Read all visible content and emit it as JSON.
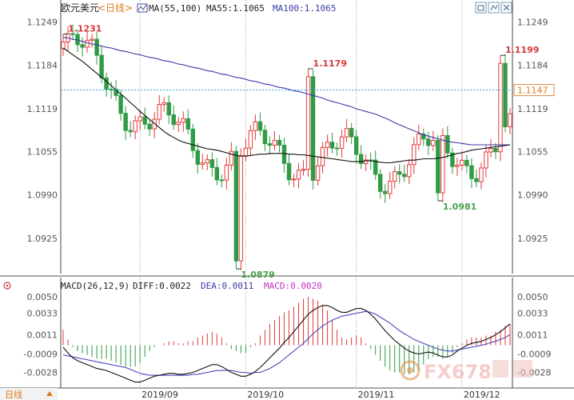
{
  "header": {
    "symbol": "欧元美元",
    "period_tag": "<日线>",
    "ma_label": "MA(55,100)",
    "ma55_label": "MA55:1.1065",
    "ma100_label": "MA100:1.1065"
  },
  "macd_header": {
    "label": "MACD(26,12,9)",
    "diff_label": "DIFF:0.0022",
    "dea_label": "DEA:0.0011",
    "macd_label": "MACD:0.0020"
  },
  "footer": {
    "period_button": "日线"
  },
  "watermark": "FX678",
  "colors": {
    "up": "#e23b3b",
    "down": "#2f9b45",
    "ma55": "#111111",
    "ma100": "#3a3aa8",
    "dea": "#4a4ac0",
    "price_line": "#2ba5e8",
    "grid": "#9a9a9a",
    "axis_text": "#555555"
  },
  "chart_data": [
    {
      "type": "candlestick",
      "title": "欧元美元 日线",
      "y_ticks": [
        1.1249,
        1.1184,
        1.1119,
        1.1055,
        1.099,
        1.0925
      ],
      "ylim": [
        1.0872,
        1.1258
      ],
      "x_labels": [
        "2019/09",
        "2019/10",
        "2019/11",
        "2019/12"
      ],
      "x_label_index": [
        16,
        38,
        61,
        83
      ],
      "current_price_label": "1.1147",
      "current_price": 1.1147,
      "annotations": [
        {
          "text": "1.1231",
          "index": 0,
          "value": 1.1231,
          "kind": "high"
        },
        {
          "text": "1.1179",
          "index": 51,
          "value": 1.1179,
          "kind": "high"
        },
        {
          "text": "1.0879",
          "index": 36,
          "value": 1.0879,
          "kind": "low"
        },
        {
          "text": "1.0981",
          "index": 78,
          "value": 1.0981,
          "kind": "low"
        },
        {
          "text": "1.1199",
          "index": 91,
          "value": 1.1199,
          "kind": "high"
        }
      ],
      "ma55": [
        1.121,
        1.1205,
        1.12,
        1.1195,
        1.119,
        1.1184,
        1.1178,
        1.1172,
        1.1166,
        1.116,
        1.1154,
        1.1147,
        1.1141,
        1.1135,
        1.1128,
        1.1122,
        1.1115,
        1.1109,
        1.1103,
        1.1097,
        1.1091,
        1.1085,
        1.108,
        1.1076,
        1.1072,
        1.1069,
        1.1067,
        1.1065,
        1.1063,
        1.1061,
        1.1059,
        1.1058,
        1.1057,
        1.1055,
        1.1053,
        1.1051,
        1.1049,
        1.1048,
        1.1048,
        1.1049,
        1.105,
        1.1051,
        1.1051,
        1.1052,
        1.1052,
        1.1052,
        1.1052,
        1.1051,
        1.1051,
        1.105,
        1.105,
        1.1049,
        1.1048,
        1.1047,
        1.1046,
        1.1045,
        1.1044,
        1.1043,
        1.1042,
        1.1041,
        1.104,
        1.104,
        1.104,
        1.1041,
        1.1041,
        1.104,
        1.1039,
        1.1038,
        1.1038,
        1.1039,
        1.104,
        1.1041,
        1.1042,
        1.1042,
        1.1043,
        1.1044,
        1.1044,
        1.1044,
        1.1045,
        1.1046,
        1.1048,
        1.105,
        1.1052,
        1.1053,
        1.1055,
        1.1057,
        1.1058,
        1.1059,
        1.106,
        1.1061,
        1.1062,
        1.1063,
        1.1064,
        1.1065
      ],
      "ma100": [
        1.1226,
        1.1225,
        1.1223,
        1.1222,
        1.122,
        1.1218,
        1.1216,
        1.1215,
        1.1213,
        1.1211,
        1.121,
        1.1208,
        1.1206,
        1.1205,
        1.1203,
        1.1201,
        1.12,
        1.1198,
        1.1196,
        1.1195,
        1.1193,
        1.1191,
        1.119,
        1.1188,
        1.1186,
        1.1185,
        1.1183,
        1.1181,
        1.118,
        1.1178,
        1.1176,
        1.1175,
        1.1173,
        1.1171,
        1.117,
        1.1168,
        1.1166,
        1.1165,
        1.1163,
        1.1161,
        1.116,
        1.1158,
        1.1156,
        1.1155,
        1.1153,
        1.1151,
        1.115,
        1.1148,
        1.1146,
        1.1145,
        1.1143,
        1.1141,
        1.1139,
        1.1137,
        1.1135,
        1.1132,
        1.113,
        1.1128,
        1.1126,
        1.1124,
        1.1122,
        1.1119,
        1.1117,
        1.1115,
        1.1113,
        1.1111,
        1.1108,
        1.1105,
        1.1102,
        1.1098,
        1.1095,
        1.1092,
        1.1089,
        1.1086,
        1.1083,
        1.108,
        1.1078,
        1.1076,
        1.1074,
        1.1072,
        1.107,
        1.1069,
        1.1068,
        1.1067,
        1.1066,
        1.1065,
        1.1065,
        1.1065,
        1.1065,
        1.1065,
        1.1065,
        1.1065,
        1.1065,
        1.1065
      ]
    },
    {
      "type": "bar",
      "title": "MACD(26,12,9)",
      "y_ticks": [
        0.005,
        0.0033,
        0.0011,
        -0.0009,
        -0.0028
      ],
      "y_tick_labels": [
        "0.0050",
        "0.0033",
        "0.0011",
        "-0.0009",
        "-0.0028"
      ],
      "ylim": [
        -0.004,
        0.0055
      ],
      "x_labels": [
        "2019/09",
        "2019/10",
        "2019/11",
        "2019/12"
      ],
      "diff": [
        -0.0002,
        -0.0008,
        -0.0013,
        -0.0016,
        -0.0018,
        -0.002,
        -0.0022,
        -0.0024,
        -0.0025,
        -0.0026,
        -0.0028,
        -0.003,
        -0.0032,
        -0.0034,
        -0.0036,
        -0.0038,
        -0.0038,
        -0.0036,
        -0.0034,
        -0.0032,
        -0.0031,
        -0.003,
        -0.0029,
        -0.0029,
        -0.003,
        -0.003,
        -0.0029,
        -0.0028,
        -0.0026,
        -0.0024,
        -0.0022,
        -0.002,
        -0.002,
        -0.0022,
        -0.0025,
        -0.0028,
        -0.003,
        -0.0032,
        -0.0032,
        -0.003,
        -0.0027,
        -0.0023,
        -0.0018,
        -0.0013,
        -0.0008,
        -0.0003,
        0.0003,
        0.0008,
        0.0014,
        0.002,
        0.0026,
        0.0032,
        0.0036,
        0.0039,
        0.0041,
        0.0041,
        0.0039,
        0.0036,
        0.0034,
        0.0034,
        0.0036,
        0.0038,
        0.0038,
        0.0036,
        0.0032,
        0.0027,
        0.0021,
        0.0015,
        0.001,
        0.0005,
        0.0001,
        -0.0003,
        -0.0006,
        -0.0008,
        -0.0009,
        -0.0008,
        -0.0007,
        -0.0008,
        -0.001,
        -0.0012,
        -0.0012,
        -0.001,
        -0.0006,
        -0.0003,
        0.0,
        0.0002,
        0.0003,
        0.0004,
        0.0006,
        0.0008,
        0.0011,
        0.0014,
        0.0018,
        0.0022
      ],
      "dea": [
        -0.001,
        -0.0011,
        -0.0012,
        -0.0013,
        -0.0014,
        -0.0015,
        -0.0016,
        -0.0017,
        -0.0018,
        -0.0019,
        -0.002,
        -0.0021,
        -0.0022,
        -0.0023,
        -0.0025,
        -0.0027,
        -0.0029,
        -0.003,
        -0.0031,
        -0.0031,
        -0.0031,
        -0.0031,
        -0.0031,
        -0.0031,
        -0.0031,
        -0.0031,
        -0.0031,
        -0.003,
        -0.003,
        -0.0029,
        -0.0028,
        -0.0027,
        -0.0026,
        -0.0026,
        -0.0026,
        -0.0026,
        -0.0027,
        -0.0028,
        -0.0028,
        -0.0029,
        -0.0028,
        -0.0028,
        -0.0026,
        -0.0024,
        -0.0021,
        -0.0018,
        -0.0014,
        -0.001,
        -0.0006,
        -0.0002,
        0.0002,
        0.0007,
        0.0012,
        0.0016,
        0.002,
        0.0023,
        0.0026,
        0.0028,
        0.003,
        0.0031,
        0.0032,
        0.0033,
        0.0034,
        0.0035,
        0.0034,
        0.0032,
        0.0029,
        0.0026,
        0.0023,
        0.0019,
        0.0015,
        0.0012,
        0.0009,
        0.0006,
        0.0004,
        0.0002,
        0.0,
        -0.0002,
        -0.0004,
        -0.0005,
        -0.0006,
        -0.0006,
        -0.0005,
        -0.0004,
        -0.0003,
        -0.0002,
        -0.0001,
        0.0,
        0.0001,
        0.0003,
        0.0004,
        0.0006,
        0.0008,
        0.0011
      ]
    }
  ]
}
